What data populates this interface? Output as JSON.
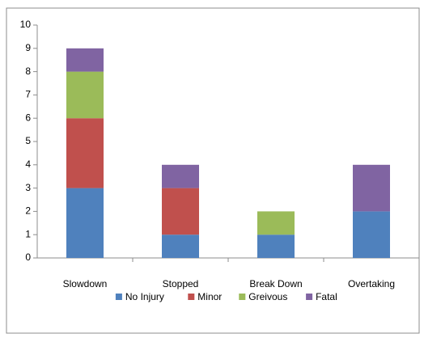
{
  "chart_data": {
    "type": "stacked_bar",
    "categories": [
      "Slowdown",
      "Stopped",
      "Break Down",
      "Overtaking"
    ],
    "series": [
      {
        "name": "No Injury",
        "color": "#4f81bd",
        "values": [
          3,
          1,
          1,
          2
        ]
      },
      {
        "name": "Minor",
        "color": "#c0504d",
        "values": [
          3,
          2,
          0,
          0
        ]
      },
      {
        "name": "Greivous",
        "color": "#9bbb59",
        "values": [
          2,
          0,
          1,
          0
        ]
      },
      {
        "name": "Fatal",
        "color": "#8064a2",
        "values": [
          1,
          1,
          0,
          2
        ]
      }
    ],
    "ylim": [
      0,
      10
    ],
    "yticks": [
      0,
      1,
      2,
      3,
      4,
      5,
      6,
      7,
      8,
      9,
      10
    ],
    "grid": false,
    "legend": "bottom"
  }
}
